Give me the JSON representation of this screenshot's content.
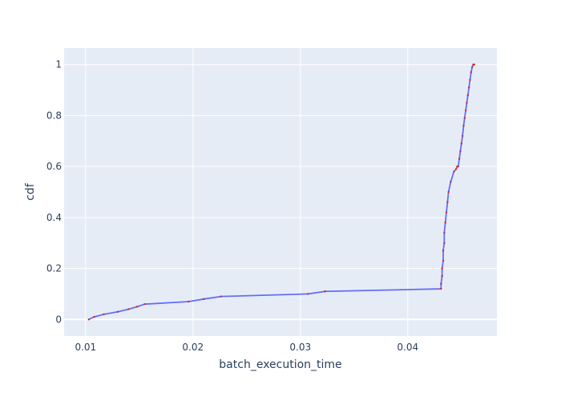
{
  "chart_data": {
    "type": "line",
    "title": "",
    "xlabel": "batch_execution_time",
    "ylabel": "cdf",
    "xlim": [
      0.008,
      0.0483
    ],
    "ylim": [
      -0.065,
      1.065
    ],
    "x_ticks": [
      0.01,
      0.02,
      0.03,
      0.04
    ],
    "x_tick_labels": [
      "0.01",
      "0.02",
      "0.03",
      "0.04"
    ],
    "y_ticks": [
      0,
      0.2,
      0.4,
      0.6,
      0.8,
      1.0
    ],
    "y_tick_labels": [
      "0",
      "0.2",
      "0.4",
      "0.6",
      "0.8",
      "1"
    ],
    "grid": true,
    "legend": "none",
    "colors": {
      "plot_bg": "#e5ecf6",
      "grid": "#ffffff",
      "line": "#636efa",
      "markers": "#d62728"
    },
    "series": [
      {
        "x": [
          0.0103,
          0.0108,
          0.0117,
          0.013,
          0.014,
          0.0148,
          0.0155,
          0.0196,
          0.021,
          0.0226,
          0.0307,
          0.0323,
          0.0431,
          0.0431,
          0.0432,
          0.0432,
          0.0433,
          0.0433,
          0.0434,
          0.0434,
          0.0435,
          0.0436,
          0.0437,
          0.0438,
          0.044,
          0.0443,
          0.0445,
          0.0446,
          0.0447,
          0.0448,
          0.0449,
          0.045,
          0.0451,
          0.0452,
          0.0453,
          0.0454,
          0.0455,
          0.0456,
          0.0457,
          0.0458,
          0.0459,
          0.046,
          0.0461,
          0.0462
        ],
        "y": [
          0.0,
          0.01,
          0.02,
          0.03,
          0.04,
          0.05,
          0.06,
          0.07,
          0.08,
          0.09,
          0.1,
          0.11,
          0.12,
          0.14,
          0.17,
          0.2,
          0.23,
          0.27,
          0.3,
          0.34,
          0.38,
          0.42,
          0.46,
          0.5,
          0.54,
          0.58,
          0.59,
          0.6,
          0.6,
          0.63,
          0.66,
          0.69,
          0.72,
          0.76,
          0.79,
          0.82,
          0.85,
          0.88,
          0.91,
          0.94,
          0.97,
          0.99,
          1.0,
          1.0
        ]
      }
    ]
  }
}
